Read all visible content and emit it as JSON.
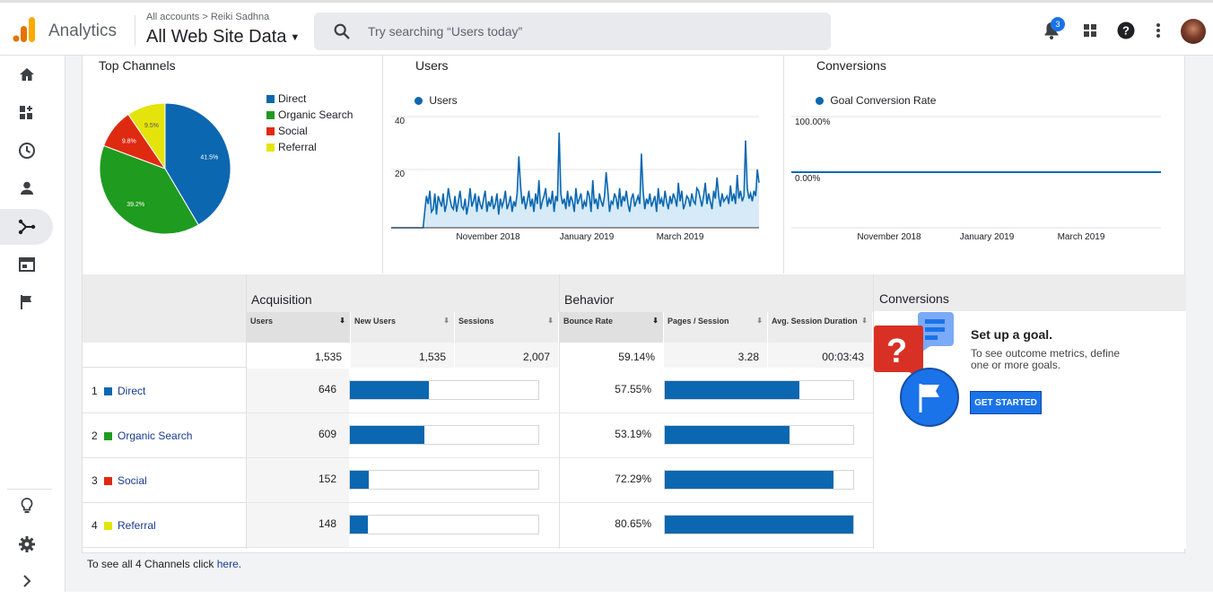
{
  "header": {
    "app_name": "Analytics",
    "crumb_account": "All accounts",
    "crumb_property": "Reiki Sadhna",
    "view_name": "All Web Site Data",
    "search_placeholder": "Try searching “Users today”",
    "notification_count": "3"
  },
  "sidebar": {
    "items": [
      {
        "name": "home",
        "icon": "home-icon"
      },
      {
        "name": "customization",
        "icon": "dashboard-add-icon"
      },
      {
        "name": "realtime",
        "icon": "clock-icon"
      },
      {
        "name": "audience",
        "icon": "person-icon"
      },
      {
        "name": "acquisition",
        "icon": "acquisition-icon",
        "active": true
      },
      {
        "name": "behavior",
        "icon": "browser-window-icon"
      },
      {
        "name": "conversions",
        "icon": "flag-icon"
      }
    ],
    "bottom": [
      {
        "name": "discover",
        "icon": "lightbulb-icon"
      },
      {
        "name": "admin",
        "icon": "gear-icon"
      },
      {
        "name": "expand",
        "icon": "chevron-right-icon"
      }
    ]
  },
  "top_channels": {
    "title": "Top Channels",
    "legend": [
      "Direct",
      "Organic Search",
      "Social",
      "Referral"
    ]
  },
  "users_panel": {
    "title": "Users",
    "legend": "Users",
    "y_ticks": [
      "40",
      "20"
    ],
    "x_ticks": [
      "November 2018",
      "January 2019",
      "March 2019"
    ]
  },
  "conversions_panel": {
    "title": "Conversions",
    "legend": "Goal Conversion Rate",
    "y_ticks": [
      "100.00%",
      "0.00%"
    ],
    "x_ticks": [
      "November 2018",
      "January 2019",
      "March 2019"
    ]
  },
  "chart_data": [
    {
      "type": "pie",
      "title": "",
      "categories": [
        "Direct",
        "Organic Search",
        "Social",
        "Referral"
      ],
      "values": [
        41.5,
        39.2,
        9.8,
        9.5
      ],
      "labels": [
        "41.5%",
        "39.2%",
        "9.8%",
        "9.5%"
      ],
      "colors": [
        "#0b67b0",
        "#1f9b1f",
        "#df2a12",
        "#e4e40c"
      ]
    },
    {
      "type": "area",
      "title": "Users",
      "series": [
        {
          "name": "Users",
          "values": [
            0,
            0,
            0,
            0,
            0,
            0,
            0,
            0,
            0,
            0,
            0,
            0,
            0,
            0,
            0,
            0,
            0,
            0,
            0,
            0,
            6,
            12,
            9,
            14,
            6,
            7,
            13,
            5,
            12,
            10,
            8,
            13,
            6,
            9,
            15,
            11,
            8,
            7,
            12,
            6,
            10,
            14,
            8,
            7,
            11,
            5,
            9,
            15,
            8,
            10,
            13,
            6,
            12,
            9,
            7,
            11,
            14,
            6,
            10,
            8,
            12,
            7,
            9,
            13,
            5,
            11,
            8,
            10,
            14,
            7,
            9,
            12,
            6,
            10,
            8,
            13,
            27,
            16,
            9,
            12,
            7,
            10,
            14,
            8,
            11,
            6,
            13,
            9,
            18,
            7,
            10,
            12,
            15,
            8,
            11,
            9,
            14,
            6,
            12,
            10,
            36,
            13,
            9,
            11,
            7,
            14,
            8,
            12,
            10,
            6,
            15,
            9,
            11,
            13,
            7,
            10,
            8,
            14,
            12,
            6,
            18,
            9,
            11,
            7,
            13,
            10,
            8,
            12,
            21,
            14,
            6,
            10,
            9,
            13,
            11,
            7,
            15,
            8,
            12,
            10,
            14,
            9,
            6,
            11,
            13,
            8,
            10,
            12,
            9,
            28,
            14,
            7,
            11,
            9,
            13,
            8,
            10,
            12,
            6,
            15,
            9,
            11,
            8,
            14,
            10,
            7,
            12,
            9,
            13,
            11,
            8,
            17,
            10,
            14,
            7,
            9,
            12,
            11,
            8,
            13,
            10,
            9,
            15,
            14,
            11,
            8,
            12,
            17,
            9,
            13,
            10,
            7,
            14,
            11,
            19,
            12,
            8,
            13,
            10,
            11,
            12,
            9,
            16,
            10,
            13,
            9,
            20,
            11,
            14,
            10,
            12,
            33,
            15,
            11,
            13,
            10,
            14,
            12,
            22,
            17
          ]
        }
      ],
      "ylim": [
        0,
        40
      ],
      "color": "#0b67b0"
    },
    {
      "type": "line",
      "title": "Conversions",
      "series": [
        {
          "name": "Goal Conversion Rate",
          "values": [
            0,
            0
          ]
        }
      ],
      "ylim": [
        0,
        100
      ],
      "color": "#0b67b0"
    }
  ],
  "table": {
    "groups": {
      "acquisition": "Acquisition",
      "behavior": "Behavior",
      "conversions": "Conversions"
    },
    "columns": [
      "Users",
      "New Users",
      "Sessions",
      "Bounce Rate",
      "Pages / Session",
      "Avg. Session Duration"
    ],
    "sort_icon": "sort-arrow-icon",
    "totals": {
      "users": "1,535",
      "new_users": "1,535",
      "sessions": "2,007",
      "bounce_rate": "59.14%",
      "pages_session": "3.28",
      "avg_duration": "00:03:43"
    },
    "rows": [
      {
        "rank": "1",
        "channel": "Direct",
        "color": "#0b67b0",
        "users": "646",
        "users_frac": 0.42,
        "bounce": "57.55%",
        "bounce_frac": 0.714
      },
      {
        "rank": "2",
        "channel": "Organic Search",
        "color": "#1f9b1f",
        "users": "609",
        "users_frac": 0.397,
        "bounce": "53.19%",
        "bounce_frac": 0.66
      },
      {
        "rank": "3",
        "channel": "Social",
        "color": "#df2a12",
        "users": "152",
        "users_frac": 0.099,
        "bounce": "72.29%",
        "bounce_frac": 0.896
      },
      {
        "rank": "4",
        "channel": "Referral",
        "color": "#e4e40c",
        "users": "148",
        "users_frac": 0.096,
        "bounce": "80.65%",
        "bounce_frac": 1.0
      }
    ]
  },
  "goal_promo": {
    "title": "Set up a goal.",
    "text": "To see outcome metrics, define one or more goals.",
    "button": "GET STARTED"
  },
  "footer": {
    "prefix": "To see all 4 Channels click ",
    "link": "here."
  }
}
